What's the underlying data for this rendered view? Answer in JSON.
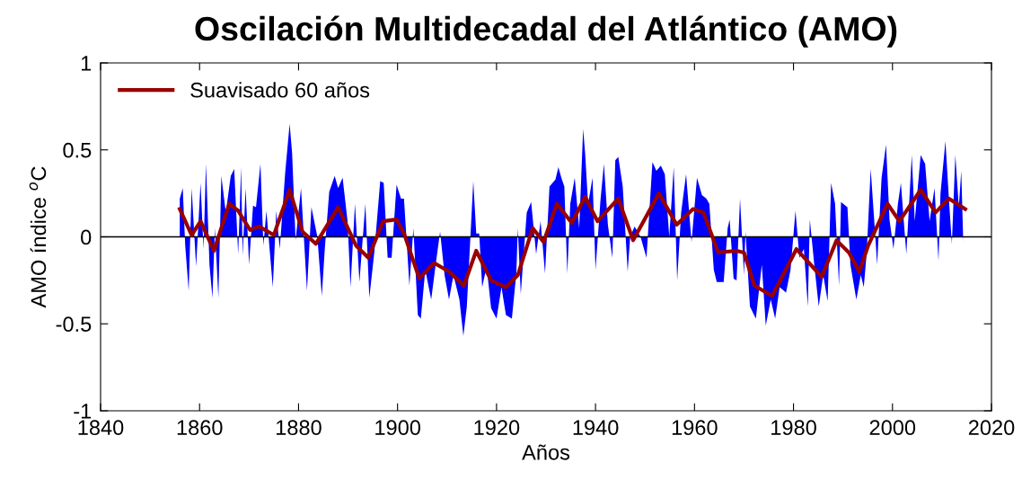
{
  "chart_data": {
    "type": "area",
    "title": "Oscilación Multidecadal del Atlántico (AMO)",
    "xlabel": "Años",
    "ylabel": "AMO índice $^{o}$C",
    "xlim": [
      1840,
      2020
    ],
    "xticks": [
      1840,
      1860,
      1880,
      1900,
      1920,
      1940,
      1960,
      1980,
      2000,
      2020
    ],
    "ylim": [
      -1,
      1
    ],
    "yticks": [
      {
        "value": -1,
        "label": "-1"
      },
      {
        "value": -0.5,
        "label": "-0.5"
      },
      0,
      0.5,
      1
    ],
    "grid": false,
    "legend": "top left",
    "ref_lines": [
      {
        "axis": "y",
        "value": 0,
        "color": "#000000"
      }
    ],
    "series": [
      {
        "color": "#0000ff",
        "x": [
          1856.0,
          1856.6,
          1857.1,
          1857.8,
          1858.4,
          1859.3,
          1860.2,
          1860.8,
          1861.3,
          1862.0,
          1862.6,
          1863.1,
          1863.8,
          1864.4,
          1865.3,
          1866.3,
          1867.0,
          1867.8,
          1868.4,
          1868.7,
          1869.3,
          1870.0,
          1870.8,
          1871.4,
          1872.3,
          1872.9,
          1873.5,
          1874.8,
          1875.5,
          1876.2,
          1877.3,
          1878.2,
          1878.7,
          1879.4,
          1880.5,
          1881.7,
          1882.6,
          1883.8,
          1884.7,
          1885.3,
          1886.2,
          1887.3,
          1888.0,
          1888.9,
          1889.9,
          1890.5,
          1891.4,
          1892.3,
          1893.5,
          1894.3,
          1895.3,
          1896.5,
          1897.2,
          1898.0,
          1898.8,
          1899.8,
          1900.7,
          1901.3,
          1902.4,
          1903.2,
          1904.1,
          1904.7,
          1905.6,
          1906.8,
          1907.7,
          1908.6,
          1909.5,
          1910.4,
          1911.3,
          1912.5,
          1913.3,
          1914.0,
          1915.3,
          1915.9,
          1916.5,
          1917.1,
          1918.0,
          1918.9,
          1920.0,
          1921.0,
          1921.9,
          1923.1,
          1924.0,
          1924.3,
          1924.9,
          1926.1,
          1927.0,
          1928.0,
          1928.9,
          1929.8,
          1930.7,
          1931.9,
          1932.5,
          1933.1,
          1933.7,
          1934.3,
          1934.9,
          1935.8,
          1936.7,
          1937.5,
          1937.9,
          1938.5,
          1939.4,
          1940.0,
          1941.0,
          1941.7,
          1942.5,
          1943.4,
          1944.0,
          1944.6,
          1945.5,
          1946.5,
          1947.0,
          1947.9,
          1949.1,
          1950.3,
          1951.5,
          1952.3,
          1953.2,
          1954.0,
          1954.9,
          1955.8,
          1956.5,
          1957.3,
          1958.3,
          1959.4,
          1960.5,
          1961.5,
          1962.4,
          1963.0,
          1963.9,
          1964.5,
          1965.1,
          1965.9,
          1966.7,
          1967.1,
          1967.9,
          1968.5,
          1969.2,
          1970.0,
          1970.3,
          1971.2,
          1972.4,
          1973.6,
          1974.4,
          1975.4,
          1976.3,
          1977.2,
          1978.5,
          1979.4,
          1980.4,
          1981.2,
          1982.1,
          1982.9,
          1983.3,
          1984.2,
          1985.1,
          1986.0,
          1986.9,
          1987.6,
          1988.4,
          1989.2,
          1989.6,
          1990.9,
          1991.5,
          1992.7,
          1993.6,
          1994.2,
          1994.8,
          1995.6,
          1996.3,
          1996.9,
          1997.8,
          1998.7,
          1999.4,
          2000.2,
          2001.1,
          2001.7,
          2002.8,
          2003.9,
          2004.5,
          2005.7,
          2006.6,
          2007.5,
          2008.5,
          2009.3,
          2009.7,
          2010.7,
          2011.4,
          2012.0,
          2012.7,
          2013.4,
          2013.9,
          2014.3
        ],
        "values": [
          0.22,
          0.28,
          -0.05,
          -0.31,
          0.28,
          -0.17,
          0.31,
          -0.07,
          0.42,
          -0.16,
          -0.35,
          0.05,
          -0.35,
          0.35,
          0.14,
          0.35,
          0.39,
          -0.1,
          0.4,
          -0.11,
          0.28,
          -0.16,
          0.18,
          0.17,
          0.42,
          -0.05,
          0.15,
          -0.29,
          0.15,
          -0.07,
          0.37,
          0.65,
          0.48,
          -0.02,
          0.28,
          -0.31,
          0.17,
          0.0,
          -0.34,
          -0.07,
          0.26,
          0.35,
          0.28,
          0.34,
          0.09,
          -0.29,
          0.19,
          -0.26,
          0.19,
          -0.35,
          -0.09,
          0.32,
          0.31,
          -0.12,
          -0.12,
          0.3,
          0.22,
          0.22,
          -0.28,
          0.05,
          -0.45,
          -0.47,
          -0.19,
          -0.36,
          -0.16,
          0.03,
          -0.22,
          -0.36,
          -0.22,
          -0.36,
          -0.57,
          -0.4,
          0.32,
          0.02,
          0.02,
          -0.29,
          -0.17,
          -0.41,
          -0.47,
          -0.29,
          -0.45,
          -0.47,
          -0.21,
          0.05,
          -0.33,
          0.14,
          0.2,
          -0.1,
          0.09,
          -0.21,
          0.29,
          0.33,
          0.4,
          0.34,
          0.29,
          -0.21,
          0.19,
          0.34,
          0.05,
          0.62,
          0.48,
          0.19,
          0.34,
          -0.19,
          0.21,
          0.42,
          0.07,
          -0.12,
          0.44,
          0.46,
          0.29,
          -0.2,
          0.0,
          0.06,
          0.0,
          -0.12,
          0.43,
          0.38,
          0.41,
          0.36,
          0.0,
          0.4,
          -0.25,
          0.14,
          0.36,
          -0.03,
          0.34,
          0.24,
          0.22,
          0.19,
          -0.19,
          -0.26,
          -0.26,
          -0.26,
          0.05,
          0.1,
          -0.24,
          -0.25,
          0.22,
          -0.22,
          0.03,
          -0.4,
          -0.47,
          -0.16,
          -0.51,
          -0.36,
          -0.47,
          -0.29,
          -0.32,
          -0.19,
          0.15,
          -0.12,
          -0.07,
          -0.4,
          0.1,
          -0.16,
          -0.4,
          -0.22,
          -0.37,
          0.31,
          0.19,
          -0.28,
          0.2,
          0.17,
          -0.16,
          -0.36,
          -0.22,
          -0.29,
          -0.09,
          0.39,
          0.1,
          -0.16,
          0.34,
          0.53,
          0.1,
          -0.07,
          0.19,
          0.31,
          -0.1,
          0.47,
          0.09,
          0.47,
          0.42,
          0.09,
          0.28,
          -0.14,
          0.25,
          0.55,
          0.22,
          -0.04,
          0.47,
          0.17,
          0.38,
          -0.03
        ]
      },
      {
        "type": "line",
        "name": "Suavisado 60 años",
        "color": "#990000",
        "x": [
          1856.0,
          1858.4,
          1860.2,
          1862.9,
          1866.0,
          1867.8,
          1870.2,
          1872.0,
          1875.0,
          1878.2,
          1880.8,
          1883.5,
          1888.0,
          1891.6,
          1894.1,
          1897.1,
          1899.8,
          1901.3,
          1904.4,
          1907.4,
          1910.4,
          1913.4,
          1915.9,
          1918.9,
          1921.9,
          1924.3,
          1927.3,
          1929.5,
          1932.2,
          1935.2,
          1937.9,
          1940.4,
          1944.6,
          1947.6,
          1952.8,
          1956.4,
          1959.7,
          1961.8,
          1964.8,
          1968.5,
          1970.0,
          1972.1,
          1975.7,
          1980.6,
          1985.7,
          1988.7,
          1991.2,
          1993.3,
          1995.1,
          1999.0,
          2001.4,
          2005.7,
          2008.7,
          2011.4,
          2014.7
        ],
        "values": [
          0.16,
          0.01,
          0.09,
          -0.08,
          0.19,
          0.15,
          0.04,
          0.06,
          0.01,
          0.27,
          0.03,
          -0.04,
          0.17,
          -0.05,
          -0.12,
          0.09,
          0.1,
          0.02,
          -0.24,
          -0.15,
          -0.2,
          -0.28,
          -0.08,
          -0.25,
          -0.29,
          -0.22,
          0.05,
          -0.03,
          0.19,
          0.08,
          0.23,
          0.09,
          0.22,
          -0.02,
          0.25,
          0.07,
          0.16,
          0.14,
          -0.09,
          -0.08,
          -0.09,
          -0.28,
          -0.34,
          -0.07,
          -0.23,
          -0.02,
          -0.09,
          -0.2,
          -0.05,
          0.19,
          0.09,
          0.27,
          0.14,
          0.22,
          0.16
        ]
      }
    ]
  }
}
